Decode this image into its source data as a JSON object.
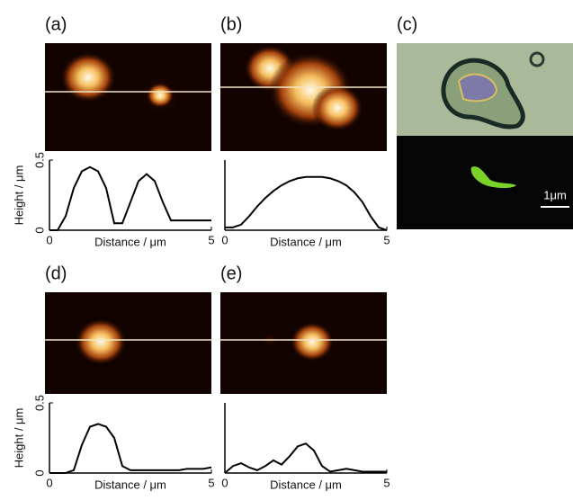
{
  "chart_data": [
    {
      "type": "line",
      "title": "(a)",
      "xlabel": "Distance / μm",
      "ylabel": "Height / μm",
      "x": [
        0,
        0.25,
        0.5,
        0.75,
        1,
        1.25,
        1.5,
        1.75,
        2,
        2.25,
        2.5,
        2.75,
        3,
        3.25,
        3.5,
        3.75,
        4,
        4.25,
        4.5,
        4.75,
        5
      ],
      "series": [
        {
          "color": "#000000",
          "values": [
            0,
            0,
            0.1,
            0.3,
            0.42,
            0.45,
            0.42,
            0.3,
            0.05,
            0.05,
            0.2,
            0.35,
            0.4,
            0.35,
            0.2,
            0.07,
            0.07,
            0.07,
            0.07,
            0.07,
            0.07
          ]
        }
      ],
      "xlim": [
        0,
        5
      ],
      "ylim": [
        0,
        0.5
      ],
      "xticks": [
        0,
        5
      ],
      "yticks": [
        0,
        0.5
      ]
    },
    {
      "type": "line",
      "title": "(b)",
      "xlabel": "Distance / μm",
      "x": [
        0,
        0.25,
        0.5,
        0.75,
        1,
        1.25,
        1.5,
        1.75,
        2,
        2.25,
        2.5,
        2.75,
        3,
        3.25,
        3.5,
        3.75,
        4,
        4.25,
        4.5,
        4.75,
        5
      ],
      "series": [
        {
          "color": "#000000",
          "values": [
            0.02,
            0.02,
            0.04,
            0.1,
            0.17,
            0.23,
            0.28,
            0.32,
            0.35,
            0.37,
            0.38,
            0.38,
            0.38,
            0.37,
            0.35,
            0.32,
            0.27,
            0.2,
            0.1,
            0.02,
            0
          ]
        }
      ],
      "xlim": [
        0,
        5
      ],
      "ylim": [
        0,
        0.5
      ],
      "xticks": [
        0,
        5
      ]
    },
    {
      "type": "line",
      "title": "(d)",
      "xlabel": "Distance / μm",
      "ylabel": "Height / μm",
      "x": [
        0,
        0.25,
        0.5,
        0.75,
        1,
        1.25,
        1.5,
        1.75,
        2,
        2.25,
        2.5,
        2.75,
        3,
        3.25,
        3.5,
        3.75,
        4,
        4.25,
        4.5,
        4.75,
        5
      ],
      "series": [
        {
          "color": "#000000",
          "values": [
            0,
            0,
            0,
            0.02,
            0.2,
            0.33,
            0.35,
            0.33,
            0.25,
            0.05,
            0.02,
            0.02,
            0.02,
            0.02,
            0.02,
            0.02,
            0.02,
            0.03,
            0.03,
            0.03,
            0.04
          ]
        }
      ],
      "xlim": [
        0,
        5
      ],
      "ylim": [
        0,
        0.5
      ],
      "xticks": [
        0,
        5
      ],
      "yticks": [
        0,
        0.5
      ]
    },
    {
      "type": "line",
      "title": "(e)",
      "xlabel": "Distance / μm",
      "x": [
        0,
        0.25,
        0.5,
        0.75,
        1,
        1.25,
        1.5,
        1.75,
        2,
        2.25,
        2.5,
        2.75,
        3,
        3.25,
        3.5,
        3.75,
        4,
        4.25,
        4.5,
        4.75,
        5
      ],
      "series": [
        {
          "color": "#000000",
          "values": [
            0,
            0.05,
            0.07,
            0.04,
            0.02,
            0.05,
            0.09,
            0.06,
            0.12,
            0.19,
            0.21,
            0.16,
            0.05,
            0.01,
            0.02,
            0.03,
            0.02,
            0.01,
            0.01,
            0.01,
            0.01
          ]
        }
      ],
      "xlim": [
        0,
        5
      ],
      "ylim": [
        0,
        0.5
      ],
      "xticks": [
        0,
        5
      ]
    }
  ],
  "panel_c": {
    "label": "(c)",
    "scale_bar": "1μm"
  }
}
